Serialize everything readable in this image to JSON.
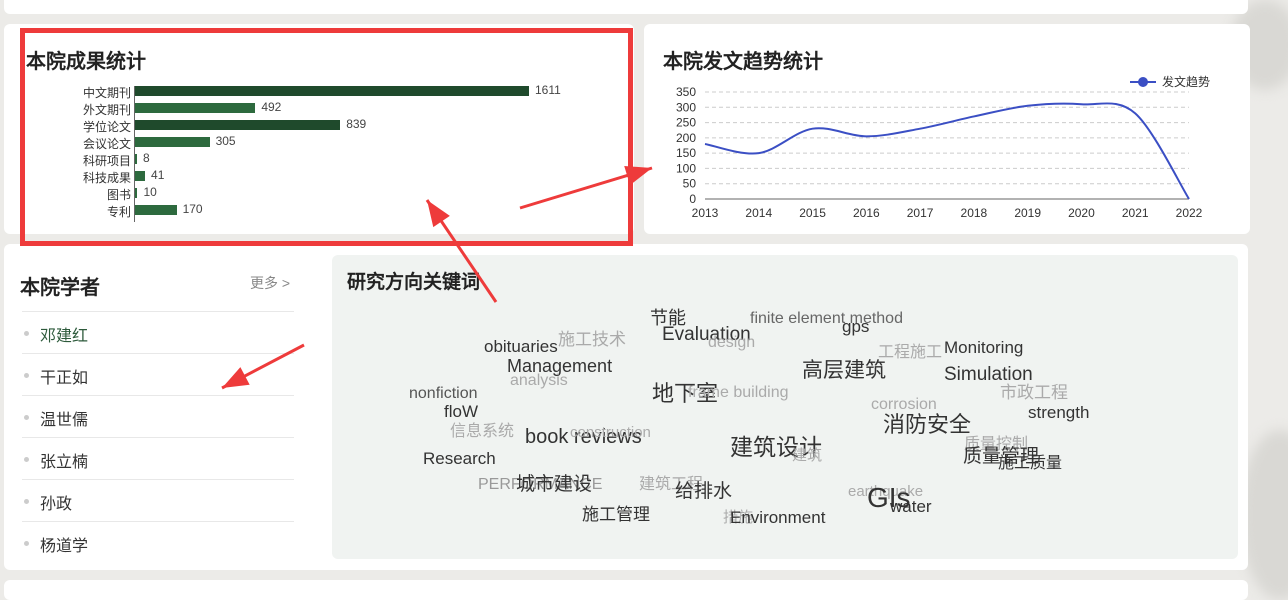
{
  "stats": {
    "title": "本院成果统计",
    "bar_color": "#2d6a3e",
    "dark_bar_color": "#1f4a2c",
    "chart_data": {
      "type": "bar",
      "orientation": "horizontal",
      "categories": [
        "中文期刊",
        "外文期刊",
        "学位论文",
        "会议论文",
        "科研项目",
        "科技成果",
        "图书",
        "专利"
      ],
      "values": [
        1611,
        492,
        839,
        305,
        8,
        41,
        10,
        170
      ]
    }
  },
  "trend": {
    "title": "本院发文趋势统计",
    "legend": "发文趋势",
    "line_color": "#3b4fc4",
    "chart_data": {
      "type": "line",
      "series": [
        {
          "name": "发文趋势",
          "values": [
            180,
            150,
            230,
            205,
            230,
            270,
            305,
            310,
            280,
            0
          ]
        }
      ],
      "x": [
        "2013",
        "2014",
        "2015",
        "2016",
        "2017",
        "2018",
        "2019",
        "2020",
        "2021",
        "2022"
      ],
      "ylim": [
        0,
        350
      ],
      "yticks": [
        0,
        50,
        100,
        150,
        200,
        250,
        300,
        350
      ],
      "grid": true,
      "legend_position": "top-right"
    }
  },
  "scholars": {
    "title": "本院学者",
    "more_label": "更多 >",
    "items": [
      {
        "name": "邓建红"
      },
      {
        "name": "干正如"
      },
      {
        "name": "温世儒"
      },
      {
        "name": "张立楠"
      },
      {
        "name": "孙政"
      },
      {
        "name": "杨道学"
      }
    ]
  },
  "keywords": {
    "title": "研究方向关键词",
    "words": [
      {
        "text": "节能",
        "size": 18,
        "color": "#333333"
      },
      {
        "text": "finite element method",
        "size": 16,
        "color": "#666666"
      },
      {
        "text": "施工技术",
        "size": 17,
        "color": "#aaaaaa"
      },
      {
        "text": "gps",
        "size": 17,
        "color": "#333333"
      },
      {
        "text": "obituaries",
        "size": 17,
        "color": "#333333"
      },
      {
        "text": "Evaluation",
        "size": 19,
        "color": "#333333"
      },
      {
        "text": "design",
        "size": 16,
        "color": "#aaaaaa"
      },
      {
        "text": "工程施工",
        "size": 16,
        "color": "#aaaaaa"
      },
      {
        "text": "Monitoring",
        "size": 17,
        "color": "#333333"
      },
      {
        "text": "Management",
        "size": 18,
        "color": "#333333"
      },
      {
        "text": "高层建筑",
        "size": 21,
        "color": "#333333"
      },
      {
        "text": "Simulation",
        "size": 19,
        "color": "#333333"
      },
      {
        "text": "analysis",
        "size": 16,
        "color": "#aaaaaa"
      },
      {
        "text": "地下室",
        "size": 22,
        "color": "#333333"
      },
      {
        "text": "frame building",
        "size": 16,
        "color": "#aaaaaa"
      },
      {
        "text": "nonfiction",
        "size": 16,
        "color": "#555555"
      },
      {
        "text": "市政工程",
        "size": 17,
        "color": "#aaaaaa"
      },
      {
        "text": "corrosion",
        "size": 16,
        "color": "#aaaaaa"
      },
      {
        "text": "floW",
        "size": 17,
        "color": "#333333"
      },
      {
        "text": "strength",
        "size": 17,
        "color": "#333333"
      },
      {
        "text": "消防安全",
        "size": 22,
        "color": "#333333"
      },
      {
        "text": "信息系统",
        "size": 16,
        "color": "#aaaaaa"
      },
      {
        "text": "book reviews",
        "size": 20,
        "color": "#333333"
      },
      {
        "text": "construction",
        "size": 15,
        "color": "#aaaaaa"
      },
      {
        "text": "建筑设计",
        "size": 23,
        "color": "#333333"
      },
      {
        "text": "质量控制",
        "size": 16,
        "color": "#aaaaaa"
      },
      {
        "text": "质量管理",
        "size": 19,
        "color": "#333333"
      },
      {
        "text": "建筑",
        "size": 15,
        "color": "#aaaaaa"
      },
      {
        "text": "Research",
        "size": 17,
        "color": "#333333"
      },
      {
        "text": "施工质量",
        "size": 16,
        "color": "#333333"
      },
      {
        "text": "PERFORMANCE",
        "size": 16,
        "color": "#999999"
      },
      {
        "text": "城市建设",
        "size": 19,
        "color": "#333333"
      },
      {
        "text": "建筑工程",
        "size": 16,
        "color": "#aaaaaa"
      },
      {
        "text": "给排水",
        "size": 19,
        "color": "#333333"
      },
      {
        "text": "earthquake",
        "size": 15,
        "color": "#aaaaaa"
      },
      {
        "text": "GIs",
        "size": 28,
        "color": "#333333"
      },
      {
        "text": "water",
        "size": 17,
        "color": "#333333"
      },
      {
        "text": "施工管理",
        "size": 17,
        "color": "#333333"
      },
      {
        "text": "措施",
        "size": 15,
        "color": "#aaaaaa"
      },
      {
        "text": "Environment",
        "size": 17,
        "color": "#333333"
      }
    ]
  },
  "annotation_color": "#ee3b3b"
}
